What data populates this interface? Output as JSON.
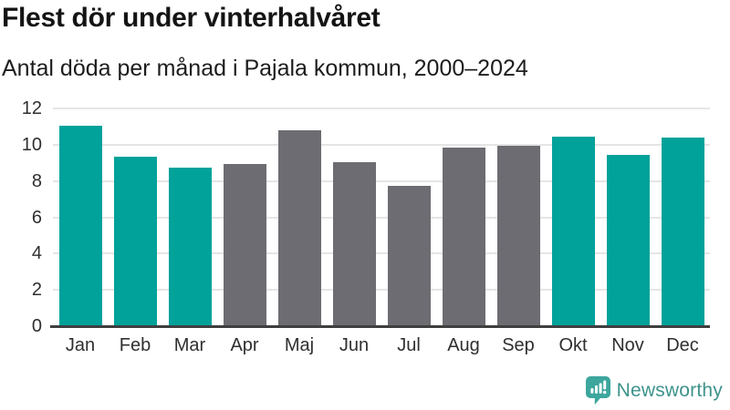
{
  "header": {
    "title": "Flest dör under vinterhalvåret",
    "subtitle": "Antal döda per månad i Pajala kommun, 2000–2024"
  },
  "chart_data": {
    "type": "bar",
    "title": "Flest dör under vinterhalvåret",
    "subtitle": "Antal döda per månad i Pajala kommun, 2000–2024",
    "categories": [
      "Jan",
      "Feb",
      "Mar",
      "Apr",
      "Maj",
      "Jun",
      "Jul",
      "Aug",
      "Sep",
      "Okt",
      "Nov",
      "Dec"
    ],
    "values": [
      11.0,
      9.3,
      8.7,
      8.9,
      10.75,
      9.0,
      7.7,
      9.8,
      9.9,
      10.4,
      9.4,
      10.35
    ],
    "groups": [
      "winter",
      "winter",
      "winter",
      "summer",
      "summer",
      "summer",
      "summer",
      "summer",
      "summer",
      "winter",
      "winter",
      "winter"
    ],
    "group_colors": {
      "winter": "#00a29a",
      "summer": "#6d6c72"
    },
    "xlabel": "",
    "ylabel": "",
    "ylim": [
      0,
      12
    ],
    "yticks": [
      0,
      2,
      4,
      6,
      8,
      10,
      12
    ],
    "grid": "horizontal-only",
    "legend": "none"
  },
  "footer": {
    "brand": "Newsworthy",
    "logo_icon": "newsworthy-speech-bubble-bar-chart-icon"
  },
  "colors": {
    "accent_teal": "#00a29a",
    "bar_gray": "#6d6c72",
    "gridline": "#e5e5e5",
    "axis_line": "#3f3f3f",
    "tick_text": "#2f2f2f",
    "title_text": "#141414",
    "brand_teal": "#3e938c"
  }
}
